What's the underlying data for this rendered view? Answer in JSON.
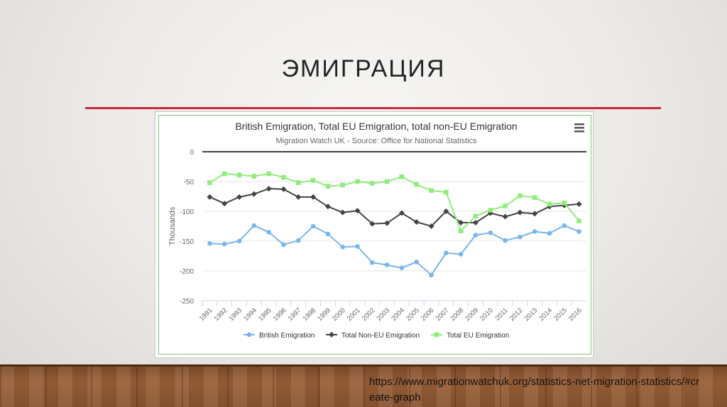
{
  "slide": {
    "title": "ЭМИГРАЦИЯ",
    "source_link": "https://www.migrationwatchuk.org/statistics-net-migration-statistics/#create-graph"
  },
  "menu_icon": "hamburger-icon",
  "colors": {
    "british": "#7cb5ec",
    "non_eu": "#434348",
    "eu": "#90ed7d",
    "title_rule": "#c8283c"
  },
  "chart_data": {
    "type": "line",
    "title": "British Emigration, Total EU Emigration, total non-EU Emigration",
    "subtitle": "Migration Watch UK - Source: Office for National Statistics",
    "xlabel": "",
    "ylabel": "Thousands",
    "ylim": [
      -250,
      0
    ],
    "yticks": [
      0,
      -50,
      -100,
      -150,
      -200,
      -250
    ],
    "grid": true,
    "legend_position": "bottom",
    "categories": [
      "1991",
      "1992",
      "1993",
      "1994",
      "1995",
      "1996",
      "1997",
      "1998",
      "1999",
      "2000",
      "2001",
      "2002",
      "2003",
      "2004",
      "2005",
      "2006",
      "2007",
      "2008",
      "2009",
      "2010",
      "2011",
      "2012",
      "2013",
      "2014",
      "2015",
      "2016"
    ],
    "series": [
      {
        "name": "British Emigration",
        "key": "british",
        "marker": "circle",
        "values": [
          -154,
          -155,
          -150,
          -124,
          -135,
          -156,
          -149,
          -125,
          -138,
          -160,
          -159,
          -186,
          -190,
          -195,
          -185,
          -207,
          -170,
          -172,
          -140,
          -136,
          -149,
          -143,
          -134,
          -137,
          -124,
          -134
        ]
      },
      {
        "name": "Total Non-EU Emigration",
        "key": "non_eu",
        "marker": "diamond",
        "values": [
          -76,
          -87,
          -76,
          -71,
          -62,
          -63,
          -76,
          -76,
          -92,
          -102,
          -99,
          -121,
          -120,
          -103,
          -118,
          -125,
          -100,
          -119,
          -119,
          -103,
          -109,
          -102,
          -104,
          -92,
          -90,
          -88
        ]
      },
      {
        "name": "Total EU Emigration",
        "key": "eu",
        "marker": "square",
        "values": [
          -52,
          -37,
          -39,
          -41,
          -37,
          -43,
          -52,
          -48,
          -58,
          -56,
          -50,
          -53,
          -50,
          -42,
          -55,
          -65,
          -68,
          -133,
          -108,
          -98,
          -91,
          -74,
          -77,
          -88,
          -86,
          -116
        ]
      }
    ]
  }
}
